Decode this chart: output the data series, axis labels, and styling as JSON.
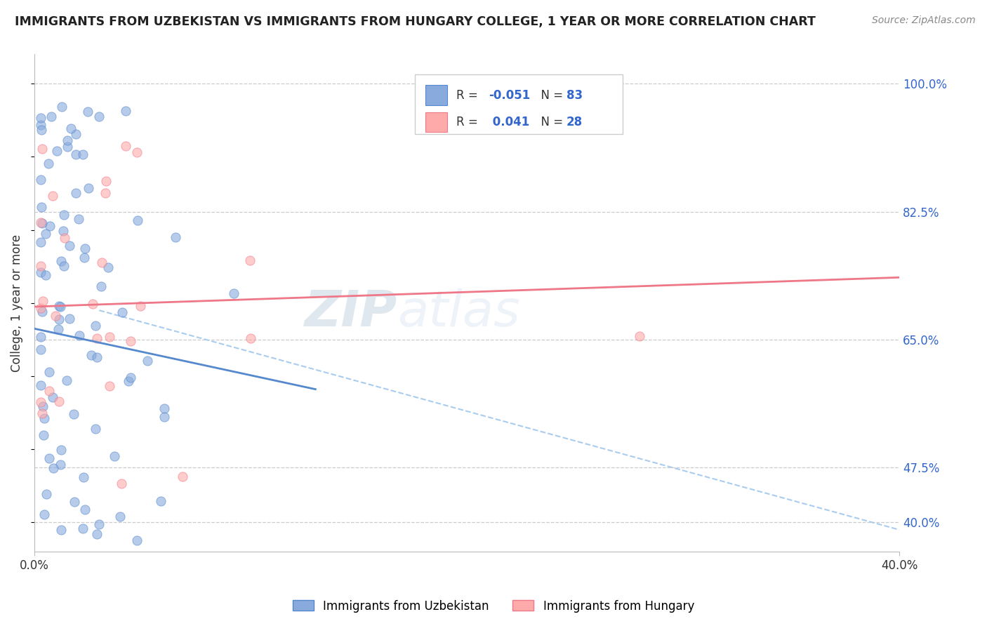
{
  "title": "IMMIGRANTS FROM UZBEKISTAN VS IMMIGRANTS FROM HUNGARY COLLEGE, 1 YEAR OR MORE CORRELATION CHART",
  "source": "Source: ZipAtlas.com",
  "ylabel": "College, 1 year or more",
  "right_yticks": [
    "100.0%",
    "82.5%",
    "65.0%",
    "47.5%",
    "40.0%"
  ],
  "right_ytick_vals": [
    1.0,
    0.825,
    0.65,
    0.475,
    0.4
  ],
  "xlim": [
    0.0,
    0.4
  ],
  "ylim": [
    0.36,
    1.04
  ],
  "color_uzbekistan": "#88AADD",
  "color_hungary": "#FFAAAA",
  "edge_uzbekistan": "#5588CC",
  "edge_hungary": "#EE7788",
  "trend_color_uzbekistan": "#5588CC",
  "trend_color_hungary": "#EE7788",
  "dashed_color": "#AACCEE",
  "scatter_alpha": 0.6,
  "scatter_size": 90,
  "watermark_zip": "ZIP",
  "watermark_atlas": "atlas",
  "legend_label1": "R = -0.051   N = 83",
  "legend_label2": "R =  0.041   N = 28",
  "bottom_label1": "Immigrants from Uzbekistan",
  "bottom_label2": "Immigrants from Hungary"
}
